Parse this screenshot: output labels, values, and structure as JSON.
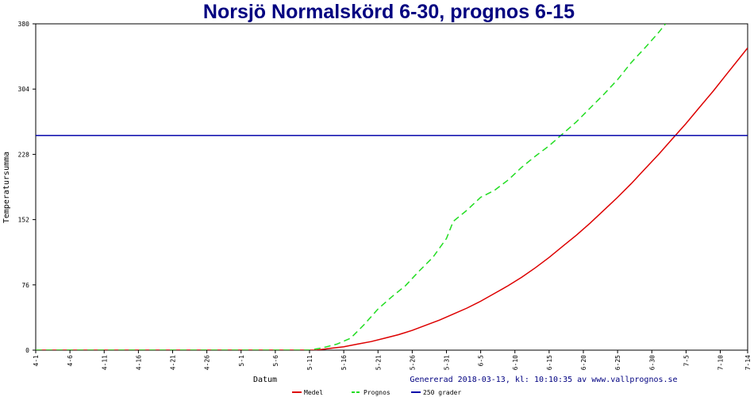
{
  "chart_data": {
    "type": "line",
    "title": "Norsjö Normalskörd 6-30, prognos 6-15",
    "xlabel": "Datum",
    "ylabel": "Temperatursumma",
    "footer": "Genererad 2018-03-13, kl: 10:10:35 av www.vallprognos.se",
    "ylim": [
      0,
      380
    ],
    "yticks": [
      0,
      76,
      152,
      228,
      304,
      380
    ],
    "x_range": [
      "4-1",
      "7-14"
    ],
    "xticks": [
      "4-1",
      "4-6",
      "4-11",
      "4-16",
      "4-21",
      "4-26",
      "5-1",
      "5-6",
      "5-11",
      "5-16",
      "5-21",
      "5-26",
      "5-31",
      "6-5",
      "6-10",
      "6-15",
      "6-20",
      "6-25",
      "6-30",
      "7-5",
      "7-10",
      "7-14"
    ],
    "legend_position": "bottom",
    "grid": false,
    "series": [
      {
        "name": "Medel",
        "color": "#dd0000",
        "style": "solid",
        "points": [
          [
            "4-1",
            0
          ],
          [
            "5-12",
            0
          ],
          [
            "5-14",
            2
          ],
          [
            "5-16",
            4
          ],
          [
            "5-18",
            7
          ],
          [
            "5-20",
            10
          ],
          [
            "5-22",
            14
          ],
          [
            "5-24",
            18
          ],
          [
            "5-26",
            23
          ],
          [
            "5-28",
            29
          ],
          [
            "5-30",
            35
          ],
          [
            "6-1",
            42
          ],
          [
            "6-3",
            49
          ],
          [
            "6-5",
            57
          ],
          [
            "6-7",
            66
          ],
          [
            "6-9",
            75
          ],
          [
            "6-11",
            85
          ],
          [
            "6-13",
            96
          ],
          [
            "6-15",
            108
          ],
          [
            "6-17",
            121
          ],
          [
            "6-19",
            134
          ],
          [
            "6-21",
            148
          ],
          [
            "6-23",
            163
          ],
          [
            "6-25",
            178
          ],
          [
            "6-27",
            194
          ],
          [
            "6-29",
            211
          ],
          [
            "7-1",
            228
          ],
          [
            "7-3",
            246
          ],
          [
            "7-5",
            264
          ],
          [
            "7-7",
            283
          ],
          [
            "7-9",
            302
          ],
          [
            "7-11",
            322
          ],
          [
            "7-13",
            342
          ],
          [
            "7-14",
            352
          ]
        ]
      },
      {
        "name": "Prognos",
        "color": "#22dd22",
        "style": "dashed",
        "points": [
          [
            "4-1",
            0
          ],
          [
            "5-11",
            0
          ],
          [
            "5-13",
            3
          ],
          [
            "5-15",
            7
          ],
          [
            "5-17",
            14
          ],
          [
            "5-19",
            30
          ],
          [
            "5-21",
            48
          ],
          [
            "5-23",
            62
          ],
          [
            "5-25",
            75
          ],
          [
            "5-27",
            92
          ],
          [
            "5-29",
            108
          ],
          [
            "5-31",
            130
          ],
          [
            "6-1",
            150
          ],
          [
            "6-3",
            163
          ],
          [
            "6-5",
            178
          ],
          [
            "6-7",
            186
          ],
          [
            "6-9",
            198
          ],
          [
            "6-11",
            213
          ],
          [
            "6-13",
            226
          ],
          [
            "6-15",
            238
          ],
          [
            "6-17",
            252
          ],
          [
            "6-19",
            266
          ],
          [
            "6-21",
            282
          ],
          [
            "6-23",
            298
          ],
          [
            "6-25",
            315
          ],
          [
            "6-27",
            335
          ],
          [
            "6-29",
            352
          ],
          [
            "7-1",
            370
          ],
          [
            "7-2",
            380
          ]
        ]
      },
      {
        "name": "250 grader",
        "color": "#0000aa",
        "style": "solid",
        "points": [
          [
            "4-1",
            250
          ],
          [
            "7-14",
            250
          ]
        ]
      }
    ]
  }
}
